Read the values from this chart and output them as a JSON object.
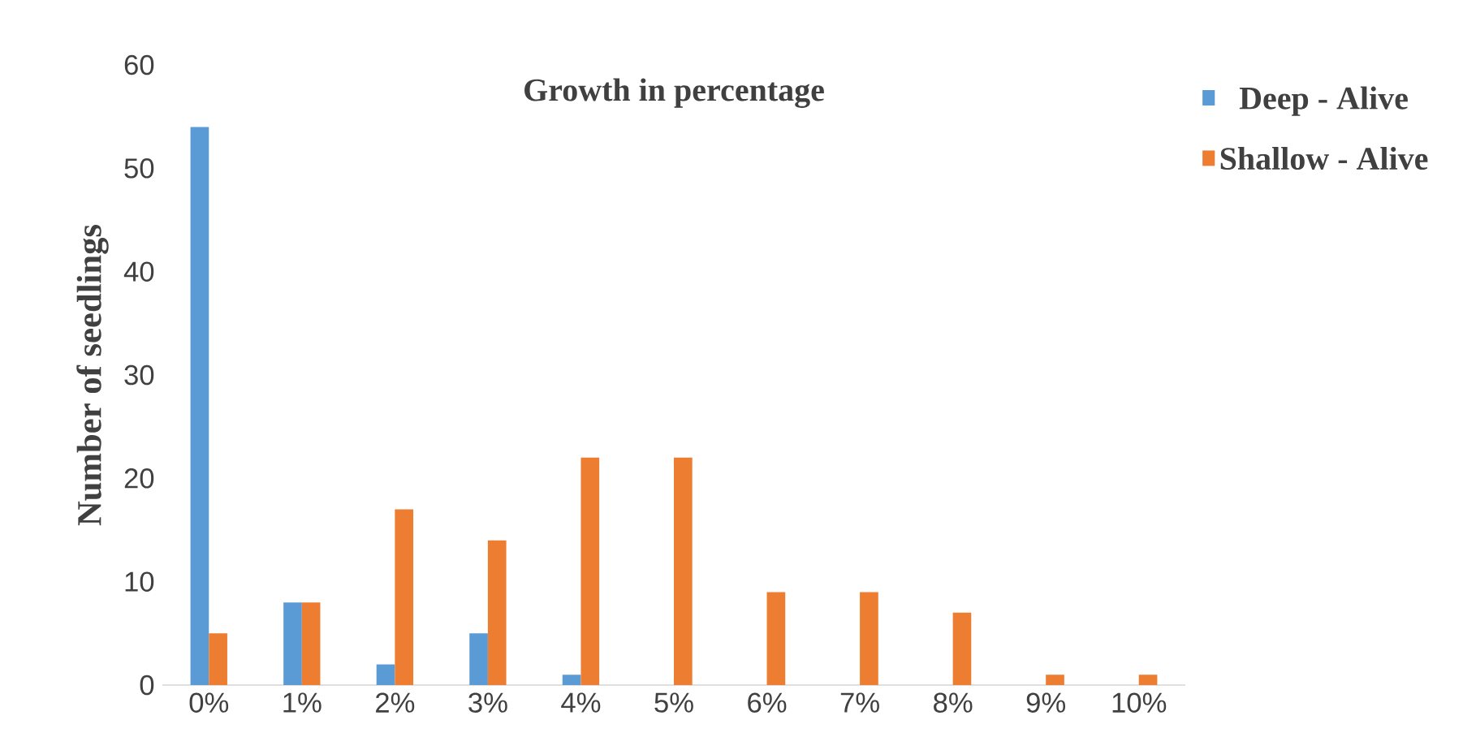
{
  "chart_data": {
    "type": "bar",
    "title": "Growth in percentage",
    "ylabel": "Number of seedlings",
    "categories": [
      "0%",
      "1%",
      "2%",
      "3%",
      "4%",
      "5%",
      "6%",
      "7%",
      "8%",
      "9%",
      "10%"
    ],
    "series": [
      {
        "name": "Deep - Alive",
        "color": "#5b9bd5",
        "values": [
          54,
          8,
          2,
          5,
          1,
          0,
          0,
          0,
          0,
          0,
          0
        ]
      },
      {
        "name": "Shallow - Alive",
        "color": "#ed7d31",
        "values": [
          5,
          8,
          17,
          14,
          22,
          22,
          9,
          9,
          7,
          1,
          1
        ]
      }
    ],
    "ylim": [
      0,
      60
    ],
    "yticks": [
      0,
      10,
      20,
      30,
      40,
      50,
      60
    ],
    "grid": false,
    "legend": "top right"
  }
}
